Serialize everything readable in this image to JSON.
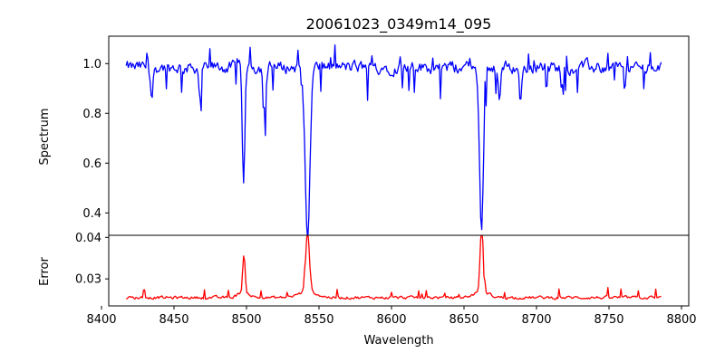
{
  "chart_data": [
    {
      "type": "line",
      "title": "20061023_0349m14_095",
      "xlabel": "",
      "ylabel": "Spectrum",
      "xlim": [
        8405,
        8805
      ],
      "ylim": [
        0.31,
        1.11
      ],
      "yticks": [
        0.4,
        0.6,
        0.8,
        1.0
      ],
      "ytick_labels": [
        "0.4",
        "0.6",
        "0.8",
        "1.0"
      ],
      "series": [
        {
          "color": "#0000ff",
          "x_range": [
            8417,
            8786
          ],
          "continuum": 0.985,
          "lines": [
            {
              "center": 8498.0,
              "min": 0.5,
              "width": 0.9
            },
            {
              "center": 8542.1,
              "min": 0.29,
              "width": 1.6
            },
            {
              "center": 8662.1,
              "min": 0.32,
              "width": 1.3
            },
            {
              "center": 8512.5,
              "min": 0.82,
              "width": 0.9
            },
            {
              "center": 8434.5,
              "min": 0.85,
              "width": 0.8
            },
            {
              "center": 8468.0,
              "min": 0.86,
              "width": 0.8
            },
            {
              "center": 8689.0,
              "min": 0.84,
              "width": 0.8
            },
            {
              "center": 8674.5,
              "min": 0.86,
              "width": 0.8
            },
            {
              "center": 8760.5,
              "min": 0.88,
              "width": 0.8
            },
            {
              "center": 8717.5,
              "min": 0.91,
              "width": 0.8
            }
          ]
        }
      ]
    },
    {
      "type": "line",
      "xlabel": "Wavelength",
      "ylabel": "Error",
      "xlim": [
        8405,
        8805
      ],
      "ylim": [
        0.0235,
        0.0405
      ],
      "xticks": [
        8400,
        8450,
        8500,
        8550,
        8600,
        8650,
        8700,
        8750,
        8800
      ],
      "xtick_labels": [
        "8400",
        "8450",
        "8500",
        "8550",
        "8600",
        "8650",
        "8700",
        "8750",
        "8800"
      ],
      "yticks": [
        0.03,
        0.04
      ],
      "ytick_labels": [
        "0.03",
        "0.04"
      ],
      "series": [
        {
          "color": "#ff0000",
          "x_range": [
            8417,
            8786
          ],
          "baseline": 0.0255,
          "peaks": [
            {
              "center": 8498.0,
              "max": 0.034,
              "width": 0.7
            },
            {
              "center": 8542.1,
              "max": 0.0402,
              "width": 1.2
            },
            {
              "center": 8662.1,
              "max": 0.0405,
              "width": 1.0
            }
          ]
        }
      ]
    }
  ]
}
